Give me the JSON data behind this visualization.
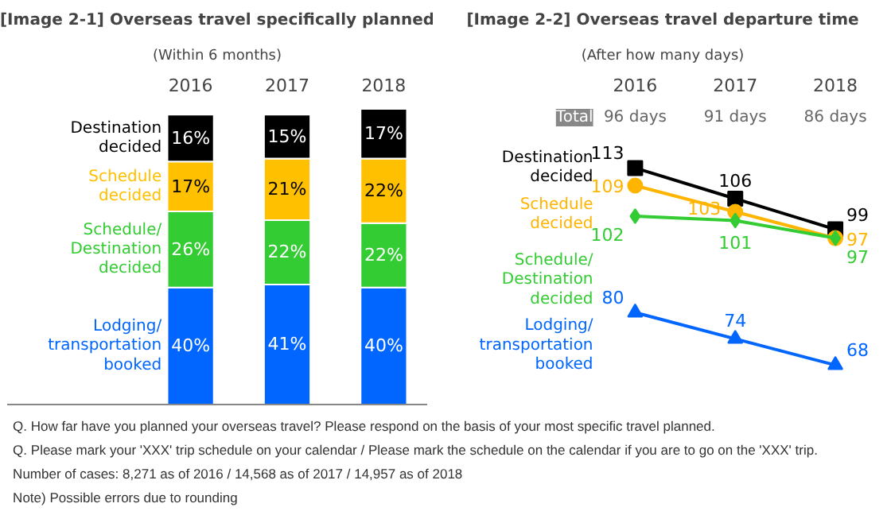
{
  "chart_data": [
    {
      "type": "bar",
      "stacked": true,
      "title": "[Image 2-1] Overseas travel specifically planned",
      "subtitle": "(Within 6 months)",
      "categories": [
        "2016",
        "2017",
        "2018"
      ],
      "series": [
        {
          "name": "Lodging/ transportation booked",
          "color": "#0066ff",
          "values": [
            40,
            41,
            40
          ],
          "value_labels": [
            "40%",
            "41%",
            "40%"
          ]
        },
        {
          "name": "Schedule/ Destination decided",
          "color": "#33cc33",
          "values": [
            26,
            22,
            22
          ],
          "value_labels": [
            "26%",
            "22%",
            "22%"
          ]
        },
        {
          "name": "Schedule decided",
          "color": "#ffc000",
          "values": [
            17,
            21,
            22
          ],
          "value_labels": [
            "17%",
            "21%",
            "22%"
          ]
        },
        {
          "name": "Destination decided",
          "color": "#000000",
          "values": [
            16,
            15,
            17
          ],
          "value_labels": [
            "16%",
            "15%",
            "17%"
          ]
        }
      ]
    },
    {
      "type": "line",
      "title": "[Image 2-2] Overseas travel departure time",
      "subtitle": "(After how many days)",
      "categories": [
        "2016",
        "2017",
        "2018"
      ],
      "data_labels": true,
      "annotations": [
        "Total",
        "96 days",
        "91 days",
        "86 days"
      ],
      "series": [
        {
          "name": "Destination decided",
          "color": "#000000",
          "marker": "square",
          "values": [
            113,
            106,
            99
          ]
        },
        {
          "name": "Schedule decided",
          "color": "#ffb400",
          "marker": "circle",
          "values": [
            109,
            103,
            97
          ]
        },
        {
          "name": "Schedule/ Destination decided",
          "color": "#33cc33",
          "marker": "diamond",
          "values": [
            102,
            101,
            97
          ]
        },
        {
          "name": "Lodging/ transportation booked",
          "color": "#0066ff",
          "marker": "triangle",
          "values": [
            80,
            74,
            68
          ]
        }
      ]
    },
    {
      "type": "other",
      "annotations": [
        "Q. How far have you planned your overseas travel? Please respond on the basis of your most specific travel planned.",
        "Q. Please mark your 'XXX' trip schedule on your calendar / Please mark the schedule on the calendar if you are to go on the 'XXX' trip.",
        "Number of cases: 8,271 as of 2016 / 14,568 as of 2017 / 14,957 as of 2018",
        "Note) Possible errors due to rounding"
      ]
    }
  ]
}
